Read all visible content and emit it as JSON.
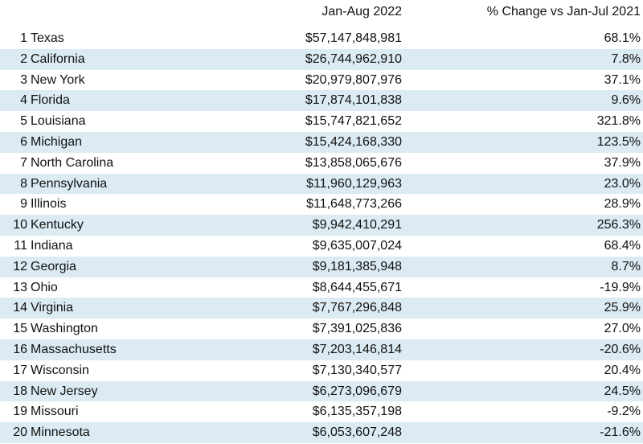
{
  "chart_data": {
    "type": "table",
    "columns": [
      "",
      "",
      "Jan-Aug 2022",
      "% Change vs Jan-Jul 2021"
    ],
    "rows": [
      {
        "rank": "1",
        "state": "Texas",
        "value": "$57,147,848,981",
        "change": "68.1%"
      },
      {
        "rank": "2",
        "state": "California",
        "value": "$26,744,962,910",
        "change": "7.8%"
      },
      {
        "rank": "3",
        "state": "New York",
        "value": "$20,979,807,976",
        "change": "37.1%"
      },
      {
        "rank": "4",
        "state": "Florida",
        "value": "$17,874,101,838",
        "change": "9.6%"
      },
      {
        "rank": "5",
        "state": "Louisiana",
        "value": "$15,747,821,652",
        "change": "321.8%"
      },
      {
        "rank": "6",
        "state": "Michigan",
        "value": "$15,424,168,330",
        "change": "123.5%"
      },
      {
        "rank": "7",
        "state": "North Carolina",
        "value": "$13,858,065,676",
        "change": "37.9%"
      },
      {
        "rank": "8",
        "state": "Pennsylvania",
        "value": "$11,960,129,963",
        "change": "23.0%"
      },
      {
        "rank": "9",
        "state": "Illinois",
        "value": "$11,648,773,266",
        "change": "28.9%"
      },
      {
        "rank": "10",
        "state": "Kentucky",
        "value": "$9,942,410,291",
        "change": "256.3%"
      },
      {
        "rank": "11",
        "state": "Indiana",
        "value": "$9,635,007,024",
        "change": "68.4%"
      },
      {
        "rank": "12",
        "state": "Georgia",
        "value": "$9,181,385,948",
        "change": "8.7%"
      },
      {
        "rank": "13",
        "state": "Ohio",
        "value": "$8,644,455,671",
        "change": "-19.9%"
      },
      {
        "rank": "14",
        "state": "Virginia",
        "value": "$7,767,296,848",
        "change": "25.9%"
      },
      {
        "rank": "15",
        "state": "Washington",
        "value": "$7,391,025,836",
        "change": "27.0%"
      },
      {
        "rank": "16",
        "state": "Massachusetts",
        "value": "$7,203,146,814",
        "change": "-20.6%"
      },
      {
        "rank": "17",
        "state": "Wisconsin",
        "value": "$7,130,340,577",
        "change": "20.4%"
      },
      {
        "rank": "18",
        "state": "New Jersey",
        "value": "$6,273,096,679",
        "change": "24.5%"
      },
      {
        "rank": "19",
        "state": "Missouri",
        "value": "$6,135,357,198",
        "change": "-9.2%"
      },
      {
        "rank": "20",
        "state": "Minnesota",
        "value": "$6,053,607,248",
        "change": "-21.6%"
      }
    ],
    "stripe_color": "#dbeaf3"
  }
}
